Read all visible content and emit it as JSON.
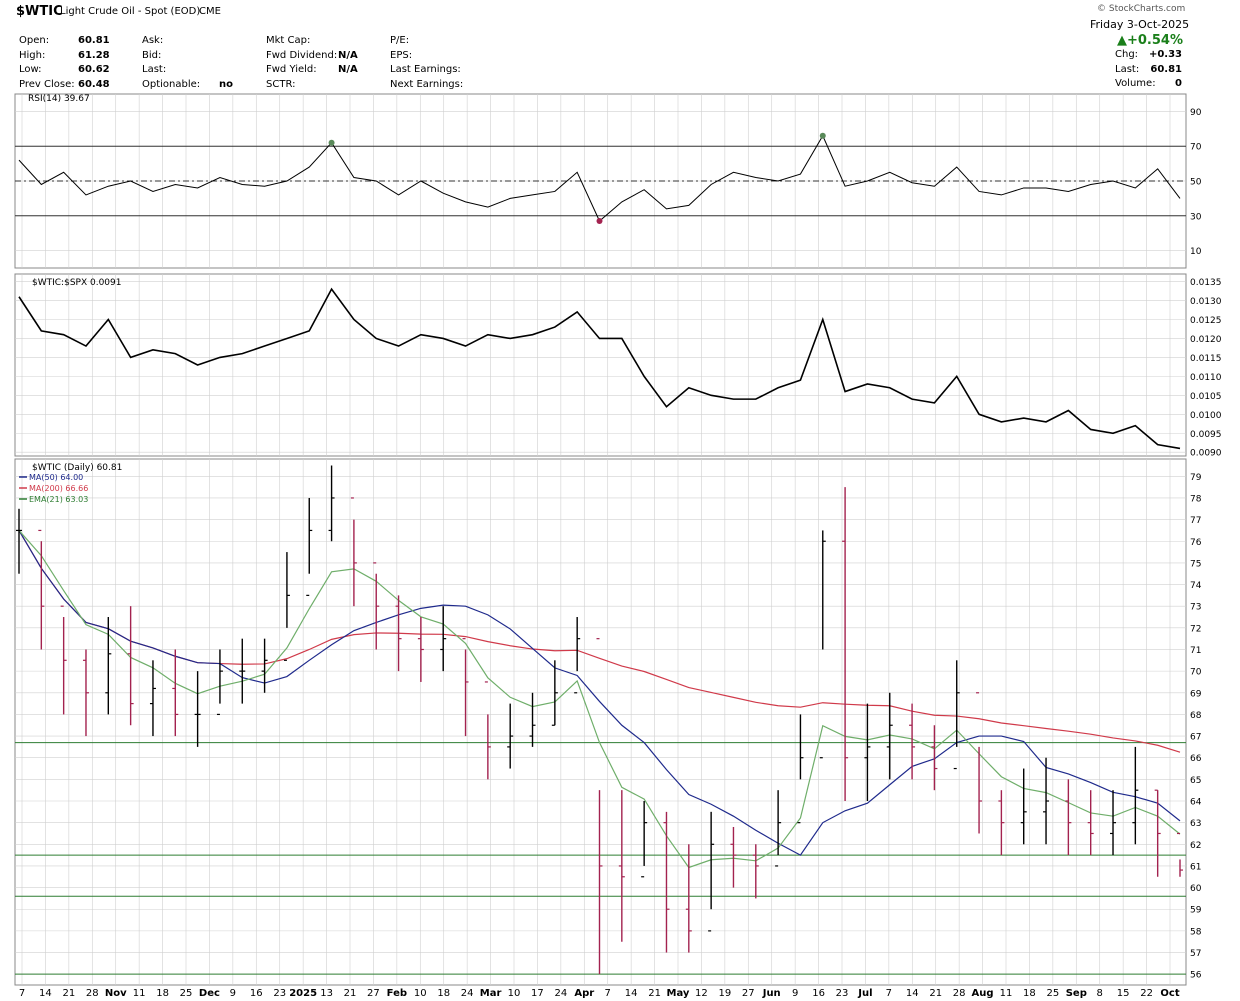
{
  "header": {
    "symbol": "$WTIC",
    "name": "Light Crude Oil - Spot (EOD)",
    "exchange": "CME",
    "date": "Friday  3-Oct-2025",
    "pct_change": "▲+0.54%",
    "watermark": "© StockCharts.com",
    "fields": [
      {
        "label": "Open:",
        "value": "60.81"
      },
      {
        "label": "High:",
        "value": "61.28"
      },
      {
        "label": "Low:",
        "value": "60.62"
      },
      {
        "label": "Prev Close:",
        "value": "60.48"
      },
      {
        "label": "Ask:",
        "value": ""
      },
      {
        "label": "Bid:",
        "value": ""
      },
      {
        "label": "Last:",
        "value": ""
      },
      {
        "label": "Optionable:",
        "value": "no"
      },
      {
        "label": "Mkt Cap:",
        "value": ""
      },
      {
        "label": "Fwd Dividend:",
        "value": "N/A"
      },
      {
        "label": "Fwd Yield:",
        "value": "N/A"
      },
      {
        "label": "SCTR:",
        "value": ""
      },
      {
        "label": "P/E:",
        "value": ""
      },
      {
        "label": "EPS:",
        "value": ""
      },
      {
        "label": "Last Earnings:",
        "value": ""
      },
      {
        "label": "Next Earnings:",
        "value": ""
      }
    ],
    "right_fields": [
      {
        "label": "Chg:",
        "value": "+0.33"
      },
      {
        "label": "Last:",
        "value": "60.81"
      },
      {
        "label": "Volume:",
        "value": "0"
      }
    ]
  },
  "colors": {
    "grid": "#d0d0d0",
    "bar_up": "#000000",
    "bar_down": "#a3224f",
    "ma50": "#1f2a8c",
    "ma200": "#d03a4a",
    "ema21": "#6fae6a",
    "hline": "#2e7d32",
    "rsi_fill": "#5a8a5a"
  },
  "chart_data": [
    {
      "type": "line",
      "title": "RSI(14) 39.67",
      "y_ticks": [
        10,
        30,
        50,
        70,
        90
      ],
      "ylim": [
        0,
        100
      ],
      "reference_lines": [
        30,
        50,
        70
      ],
      "x": [
        "2024-10-07",
        "2024-10-14",
        "2024-10-21",
        "2024-10-28",
        "2024-11-04",
        "2024-11-11",
        "2024-11-18",
        "2024-11-25",
        "2024-12-02",
        "2024-12-09",
        "2024-12-16",
        "2024-12-23",
        "2024-12-30",
        "2025-01-06",
        "2025-01-13",
        "2025-01-20",
        "2025-01-27",
        "2025-02-03",
        "2025-02-10",
        "2025-02-17",
        "2025-02-24",
        "2025-03-03",
        "2025-03-10",
        "2025-03-17",
        "2025-03-24",
        "2025-03-31",
        "2025-04-07",
        "2025-04-14",
        "2025-04-21",
        "2025-04-28",
        "2025-05-05",
        "2025-05-12",
        "2025-05-19",
        "2025-05-26",
        "2025-06-02",
        "2025-06-09",
        "2025-06-16",
        "2025-06-23",
        "2025-06-30",
        "2025-07-07",
        "2025-07-14",
        "2025-07-21",
        "2025-07-28",
        "2025-08-04",
        "2025-08-11",
        "2025-08-18",
        "2025-08-25",
        "2025-09-01",
        "2025-09-08",
        "2025-09-15",
        "2025-09-22",
        "2025-09-29",
        "2025-10-03"
      ],
      "values": [
        62,
        48,
        55,
        42,
        47,
        50,
        44,
        48,
        46,
        52,
        48,
        47,
        50,
        58,
        72,
        52,
        50,
        42,
        50,
        43,
        38,
        35,
        40,
        42,
        44,
        55,
        27,
        38,
        45,
        34,
        36,
        48,
        55,
        52,
        50,
        54,
        76,
        47,
        50,
        55,
        49,
        47,
        58,
        44,
        42,
        46,
        46,
        44,
        48,
        50,
        46,
        57,
        40
      ]
    },
    {
      "type": "line",
      "title": "$WTIC:$SPX 0.0091",
      "y_ticks": [
        0.009,
        0.0095,
        0.01,
        0.0105,
        0.011,
        0.0115,
        0.012,
        0.0125,
        0.013,
        0.0135
      ],
      "y_tick_labels": [
        "0.0090",
        "0.0095",
        "0.0100",
        "0.0105",
        "0.0110",
        "0.0115",
        "0.0120",
        "0.0125",
        "0.0130",
        "0.0135"
      ],
      "ylim": [
        0.0089,
        0.0137
      ],
      "x": [
        "2024-10-07",
        "2024-10-14",
        "2024-10-21",
        "2024-10-28",
        "2024-11-04",
        "2024-11-11",
        "2024-11-18",
        "2024-11-25",
        "2024-12-02",
        "2024-12-09",
        "2024-12-16",
        "2024-12-23",
        "2024-12-30",
        "2025-01-06",
        "2025-01-13",
        "2025-01-20",
        "2025-01-27",
        "2025-02-03",
        "2025-02-10",
        "2025-02-17",
        "2025-02-24",
        "2025-03-03",
        "2025-03-10",
        "2025-03-17",
        "2025-03-24",
        "2025-03-31",
        "2025-04-07",
        "2025-04-14",
        "2025-04-21",
        "2025-04-28",
        "2025-05-05",
        "2025-05-12",
        "2025-05-19",
        "2025-05-26",
        "2025-06-02",
        "2025-06-09",
        "2025-06-16",
        "2025-06-23",
        "2025-06-30",
        "2025-07-07",
        "2025-07-14",
        "2025-07-21",
        "2025-07-28",
        "2025-08-04",
        "2025-08-11",
        "2025-08-18",
        "2025-08-25",
        "2025-09-01",
        "2025-09-08",
        "2025-09-15",
        "2025-09-22",
        "2025-09-29",
        "2025-10-03"
      ],
      "values": [
        0.0131,
        0.0122,
        0.0121,
        0.0118,
        0.0125,
        0.0115,
        0.0117,
        0.0116,
        0.0113,
        0.0115,
        0.0116,
        0.0118,
        0.012,
        0.0122,
        0.0133,
        0.0125,
        0.012,
        0.0118,
        0.0121,
        0.012,
        0.0118,
        0.0121,
        0.012,
        0.0121,
        0.0123,
        0.0127,
        0.012,
        0.012,
        0.011,
        0.0102,
        0.0107,
        0.0105,
        0.0104,
        0.0104,
        0.0107,
        0.0109,
        0.0125,
        0.0106,
        0.0108,
        0.0107,
        0.0104,
        0.0103,
        0.011,
        0.01,
        0.0098,
        0.0099,
        0.0098,
        0.0101,
        0.0096,
        0.0095,
        0.0097,
        0.0092,
        0.0091
      ]
    },
    {
      "type": "ohlc",
      "title": "$WTIC (Daily) 60.81",
      "legend": [
        {
          "name": "MA(50) 64.00",
          "color": "#1f2a8c"
        },
        {
          "name": "MA(200) 66.66",
          "color": "#d03a4a"
        },
        {
          "name": "EMA(21) 63.03",
          "color": "#2e7d32"
        }
      ],
      "ylim": [
        55.5,
        79.8
      ],
      "y_ticks": [
        56,
        57,
        58,
        59,
        60,
        61,
        62,
        63,
        64,
        65,
        66,
        67,
        68,
        69,
        70,
        71,
        72,
        73,
        74,
        75,
        76,
        77,
        78,
        79
      ],
      "horizontal_lines": [
        66.7,
        61.5,
        59.6,
        56.0
      ],
      "x": [
        "2024-10-07",
        "2024-10-14",
        "2024-10-21",
        "2024-10-28",
        "2024-11-04",
        "2024-11-11",
        "2024-11-18",
        "2024-11-25",
        "2024-12-02",
        "2024-12-09",
        "2024-12-16",
        "2024-12-23",
        "2024-12-30",
        "2025-01-06",
        "2025-01-13",
        "2025-01-20",
        "2025-01-27",
        "2025-02-03",
        "2025-02-10",
        "2025-02-17",
        "2025-02-24",
        "2025-03-03",
        "2025-03-10",
        "2025-03-17",
        "2025-03-24",
        "2025-03-31",
        "2025-04-07",
        "2025-04-14",
        "2025-04-21",
        "2025-04-28",
        "2025-05-05",
        "2025-05-12",
        "2025-05-19",
        "2025-05-26",
        "2025-06-02",
        "2025-06-09",
        "2025-06-16",
        "2025-06-23",
        "2025-06-30",
        "2025-07-07",
        "2025-07-14",
        "2025-07-21",
        "2025-07-28",
        "2025-08-04",
        "2025-08-11",
        "2025-08-18",
        "2025-08-25",
        "2025-09-01",
        "2025-09-08",
        "2025-09-15",
        "2025-09-22",
        "2025-09-29",
        "2025-10-03"
      ],
      "close": [
        76.5,
        73.0,
        70.5,
        69.0,
        70.8,
        68.5,
        69.2,
        68.0,
        68.0,
        70.0,
        70.0,
        70.5,
        73.5,
        76.5,
        78.0,
        75.0,
        73.0,
        71.5,
        71.0,
        71.5,
        69.5,
        66.5,
        67.0,
        67.5,
        69.0,
        71.5,
        61.0,
        60.5,
        63.0,
        59.0,
        58.0,
        62.0,
        61.5,
        61.0,
        63.0,
        66.0,
        76.0,
        66.0,
        66.5,
        67.5,
        66.5,
        65.5,
        69.0,
        64.0,
        63.0,
        63.5,
        64.0,
        63.0,
        62.5,
        63.0,
        64.5,
        62.5,
        60.81
      ],
      "high": [
        77.5,
        76.0,
        72.5,
        71.0,
        72.5,
        73.0,
        70.5,
        71.0,
        70.0,
        71.0,
        71.5,
        71.5,
        75.5,
        78.0,
        79.5,
        77.0,
        74.5,
        73.5,
        72.5,
        73.0,
        71.0,
        68.0,
        68.5,
        69.0,
        70.5,
        72.5,
        64.5,
        64.5,
        64.0,
        63.5,
        62.0,
        63.5,
        62.8,
        62.0,
        64.5,
        68.0,
        76.5,
        78.5,
        68.5,
        69.0,
        68.5,
        67.5,
        70.5,
        66.5,
        64.5,
        65.5,
        66.0,
        65.0,
        64.5,
        64.5,
        66.5,
        64.5,
        61.3
      ],
      "low": [
        74.5,
        71.0,
        68.0,
        67.0,
        68.0,
        67.5,
        67.0,
        67.0,
        66.5,
        68.5,
        68.5,
        69.0,
        72.0,
        74.5,
        76.0,
        73.0,
        71.0,
        70.0,
        69.5,
        70.0,
        67.0,
        65.0,
        65.5,
        66.5,
        67.5,
        70.0,
        56.0,
        57.5,
        61.0,
        57.0,
        57.0,
        59.0,
        60.0,
        59.5,
        61.5,
        65.0,
        71.0,
        64.0,
        64.0,
        65.0,
        65.0,
        64.5,
        66.5,
        62.5,
        61.5,
        62.0,
        62.0,
        61.5,
        61.5,
        61.5,
        62.0,
        60.5,
        60.5
      ]
    }
  ],
  "x_axis": {
    "labels": [
      {
        "text": "7",
        "bold": false
      },
      {
        "text": "14",
        "bold": false
      },
      {
        "text": "21",
        "bold": false
      },
      {
        "text": "28",
        "bold": false
      },
      {
        "text": "Nov",
        "bold": true
      },
      {
        "text": "11",
        "bold": false
      },
      {
        "text": "18",
        "bold": false
      },
      {
        "text": "25",
        "bold": false
      },
      {
        "text": "Dec",
        "bold": true
      },
      {
        "text": "9",
        "bold": false
      },
      {
        "text": "16",
        "bold": false
      },
      {
        "text": "23",
        "bold": false
      },
      {
        "text": "2025",
        "bold": true
      },
      {
        "text": "13",
        "bold": false
      },
      {
        "text": "21",
        "bold": false
      },
      {
        "text": "27",
        "bold": false
      },
      {
        "text": "Feb",
        "bold": true
      },
      {
        "text": "10",
        "bold": false
      },
      {
        "text": "18",
        "bold": false
      },
      {
        "text": "24",
        "bold": false
      },
      {
        "text": "Mar",
        "bold": true
      },
      {
        "text": "10",
        "bold": false
      },
      {
        "text": "17",
        "bold": false
      },
      {
        "text": "24",
        "bold": false
      },
      {
        "text": "Apr",
        "bold": true
      },
      {
        "text": "7",
        "bold": false
      },
      {
        "text": "14",
        "bold": false
      },
      {
        "text": "21",
        "bold": false
      },
      {
        "text": "May",
        "bold": true
      },
      {
        "text": "12",
        "bold": false
      },
      {
        "text": "19",
        "bold": false
      },
      {
        "text": "27",
        "bold": false
      },
      {
        "text": "Jun",
        "bold": true
      },
      {
        "text": "9",
        "bold": false
      },
      {
        "text": "16",
        "bold": false
      },
      {
        "text": "23",
        "bold": false
      },
      {
        "text": "Jul",
        "bold": true
      },
      {
        "text": "7",
        "bold": false
      },
      {
        "text": "14",
        "bold": false
      },
      {
        "text": "21",
        "bold": false
      },
      {
        "text": "28",
        "bold": false
      },
      {
        "text": "Aug",
        "bold": true
      },
      {
        "text": "11",
        "bold": false
      },
      {
        "text": "18",
        "bold": false
      },
      {
        "text": "25",
        "bold": false
      },
      {
        "text": "Sep",
        "bold": true
      },
      {
        "text": "8",
        "bold": false
      },
      {
        "text": "15",
        "bold": false
      },
      {
        "text": "22",
        "bold": false
      },
      {
        "text": "Oct",
        "bold": true
      }
    ]
  }
}
